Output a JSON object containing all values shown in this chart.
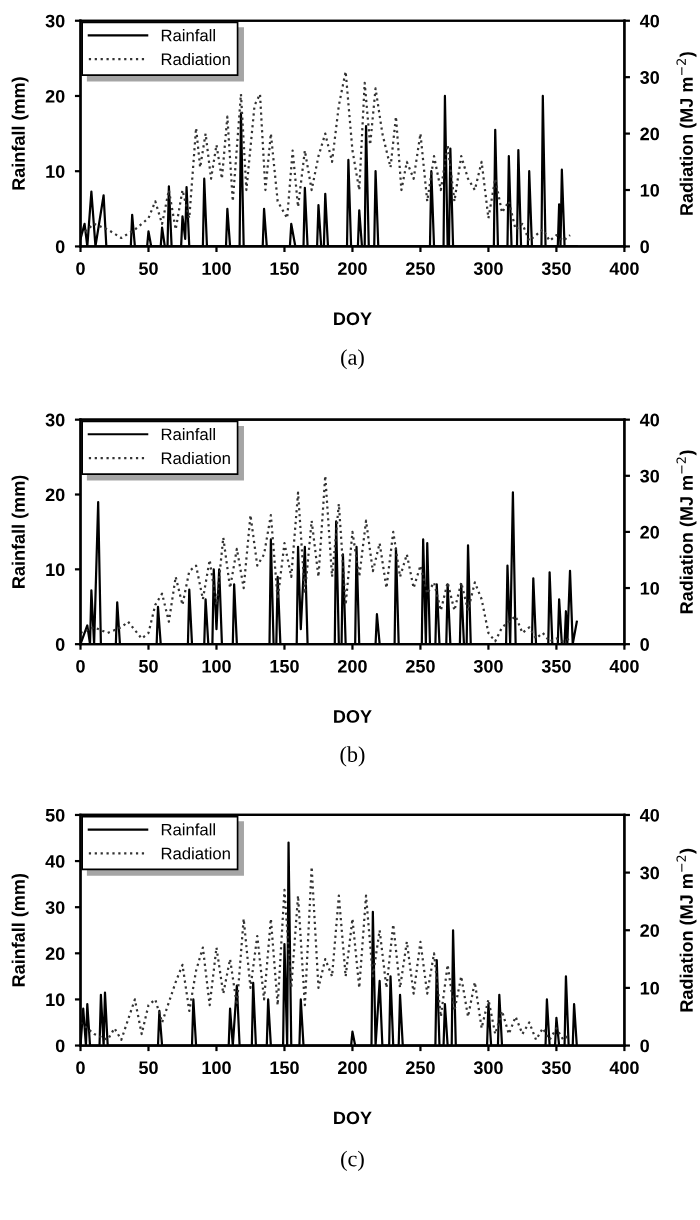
{
  "chart_data": [
    {
      "type": "line",
      "xlabel": "DOY",
      "ylabel": "Rainfall (mm)",
      "y2label": "Radiation (MJ m$^{−2}$)",
      "annotations": [
        "(a)"
      ],
      "xlim": [
        0,
        400
      ],
      "xticks": [
        0,
        50,
        100,
        150,
        200,
        250,
        300,
        350,
        400
      ],
      "ylim": [
        0,
        30
      ],
      "yticks": [
        0,
        10,
        20,
        30
      ],
      "y2lim": [
        0,
        40
      ],
      "y2ticks": [
        0,
        10,
        20,
        30,
        40
      ],
      "legend": "top left",
      "grid": false,
      "series": [
        {
          "name": "Rainfall",
          "color": "#000000",
          "line_style": "solid",
          "x": [
            0,
            3,
            5,
            8,
            11,
            17,
            19,
            37,
            38,
            40,
            49,
            50,
            52,
            59,
            60,
            62,
            64,
            65,
            67,
            74,
            75,
            77,
            78,
            80,
            90,
            91,
            93,
            107,
            108,
            110,
            117,
            118,
            120,
            134,
            135,
            137,
            154,
            155,
            158,
            164,
            165,
            167,
            174,
            175,
            177,
            179,
            180,
            182,
            196,
            197,
            199,
            204,
            205,
            207,
            209,
            210,
            212,
            216,
            217,
            219,
            257,
            258,
            260,
            267,
            268,
            270,
            271,
            272,
            274,
            304,
            305,
            307,
            314,
            315,
            317,
            321,
            322,
            324,
            329,
            330,
            332,
            339,
            340,
            342,
            351,
            352,
            353,
            354,
            356,
            365
          ],
          "values": [
            1,
            3,
            0,
            7.3,
            0,
            6.8,
            0,
            0,
            4.2,
            0,
            0,
            2,
            0,
            0,
            2.5,
            0,
            0,
            8,
            0,
            0,
            4,
            1,
            7.9,
            0,
            0,
            9,
            0,
            0,
            5,
            0,
            0,
            17.7,
            0,
            0,
            5,
            0,
            0,
            3,
            0,
            0,
            7.8,
            0,
            0,
            5.5,
            0,
            0,
            7,
            0,
            0,
            11.5,
            0,
            0,
            4.8,
            0,
            0,
            16,
            0,
            0,
            10,
            0,
            0,
            10,
            0,
            0,
            20,
            0,
            0,
            13,
            0,
            0,
            15.5,
            0,
            0,
            12,
            0,
            0,
            12.8,
            0,
            0,
            10,
            0,
            0,
            20,
            0,
            0,
            5.6,
            0,
            10.2,
            0,
            0
          ]
        },
        {
          "name": "Radiation",
          "color": "#333333",
          "line_style": "dotted",
          "axis": "y2",
          "x": [
            0,
            10,
            20,
            30,
            40,
            50,
            55,
            60,
            65,
            70,
            75,
            80,
            85,
            88,
            92,
            96,
            100,
            104,
            108,
            112,
            118,
            122,
            128,
            132,
            136,
            140,
            145,
            152,
            156,
            160,
            165,
            170,
            175,
            180,
            185,
            190,
            195,
            200,
            205,
            209,
            213,
            217,
            222,
            228,
            232,
            236,
            240,
            245,
            250,
            255,
            260,
            265,
            270,
            275,
            280,
            285,
            290,
            295,
            300,
            305,
            310,
            315,
            320,
            325,
            330,
            335,
            340,
            345,
            350,
            355,
            360
          ],
          "values": [
            2,
            4,
            3,
            1.5,
            3,
            5,
            8,
            4,
            10,
            3,
            10,
            5,
            21,
            14,
            20,
            12,
            18,
            12,
            23,
            8,
            27,
            10,
            25,
            27,
            10,
            20,
            8,
            5,
            17,
            7,
            17,
            10,
            16,
            20,
            15,
            25,
            31,
            17,
            10,
            29,
            18,
            28,
            20,
            14,
            23,
            10,
            15,
            12,
            20,
            8,
            16,
            10,
            18,
            8,
            16,
            12,
            10,
            15,
            5,
            12,
            6,
            8,
            3,
            4,
            1,
            2,
            3,
            1,
            2,
            1,
            2
          ]
        }
      ]
    },
    {
      "type": "line",
      "xlabel": "DOY",
      "ylabel": "Rainfall (mm)",
      "y2label": "Radiation (MJ m$^{−2}$)",
      "annotations": [
        "(b)"
      ],
      "xlim": [
        0,
        400
      ],
      "xticks": [
        0,
        50,
        100,
        150,
        200,
        250,
        300,
        350,
        400
      ],
      "ylim": [
        0,
        30
      ],
      "yticks": [
        0,
        10,
        20,
        30
      ],
      "y2lim": [
        0,
        40
      ],
      "y2ticks": [
        0,
        10,
        20,
        30,
        40
      ],
      "legend": "top left",
      "grid": false,
      "series": [
        {
          "name": "Rainfall",
          "color": "#000000",
          "line_style": "solid",
          "x": [
            0,
            5,
            7,
            8,
            10,
            13,
            15,
            26,
            27,
            29,
            56,
            57,
            59,
            79,
            80,
            82,
            91,
            92,
            94,
            97,
            98,
            100,
            102,
            104,
            112,
            113,
            115,
            139,
            140,
            142,
            144,
            145,
            147,
            159,
            160,
            162,
            165,
            167,
            187,
            188,
            190,
            192,
            193,
            195,
            202,
            203,
            205,
            217,
            218,
            220,
            231,
            232,
            234,
            251,
            252,
            254,
            255,
            257,
            261,
            262,
            264,
            269,
            270,
            272,
            279,
            280,
            282,
            284,
            285,
            287,
            313,
            314,
            316,
            318,
            320,
            332,
            333,
            335,
            344,
            345,
            347,
            351,
            352,
            354,
            356,
            357,
            358,
            360,
            362,
            365
          ],
          "values": [
            0,
            2.5,
            0,
            7.2,
            0,
            19,
            0,
            0,
            5.6,
            0,
            0,
            5,
            0,
            0,
            7.3,
            0,
            0,
            6,
            0,
            0,
            10,
            2,
            10,
            0,
            0,
            8,
            0,
            0,
            14,
            0,
            0,
            9,
            0,
            0,
            13,
            2,
            13,
            0,
            0,
            16.4,
            0,
            0,
            12,
            0,
            0,
            13,
            0,
            0,
            4,
            0,
            0,
            12.8,
            0,
            0,
            14,
            0,
            13.5,
            0,
            0,
            8,
            0,
            0,
            8,
            0,
            0,
            8,
            0,
            0,
            13.2,
            0,
            0,
            10.5,
            0,
            20.3,
            0,
            0,
            8.8,
            0,
            0,
            9.6,
            0,
            0,
            6,
            0,
            0,
            4.4,
            0,
            9.8,
            0,
            3
          ]
        },
        {
          "name": "Radiation",
          "color": "#333333",
          "line_style": "dotted",
          "axis": "y2",
          "x": [
            0,
            10,
            20,
            30,
            35,
            45,
            50,
            55,
            60,
            65,
            70,
            75,
            80,
            85,
            90,
            95,
            100,
            105,
            110,
            115,
            120,
            125,
            130,
            135,
            140,
            145,
            150,
            155,
            160,
            165,
            170,
            175,
            180,
            185,
            190,
            195,
            200,
            205,
            210,
            215,
            220,
            225,
            230,
            235,
            240,
            245,
            250,
            255,
            260,
            265,
            270,
            275,
            280,
            285,
            290,
            295,
            300,
            305,
            310,
            315,
            320,
            325,
            330,
            335,
            340,
            345,
            350,
            355,
            360
          ],
          "values": [
            2,
            3,
            2,
            3,
            4,
            1,
            2,
            7,
            9,
            4,
            12,
            7,
            13,
            14,
            8,
            15,
            7,
            19,
            10,
            17,
            10,
            23,
            14,
            16,
            23,
            8,
            18,
            12,
            27,
            9,
            22,
            12,
            30,
            12,
            25,
            7,
            20,
            12,
            22,
            13,
            18,
            10,
            20,
            12,
            16,
            10,
            14,
            9,
            11,
            6,
            11,
            6,
            11,
            6,
            11,
            8,
            2,
            0.5,
            3,
            4,
            5,
            2,
            3,
            1,
            2,
            0.5,
            1,
            0.5,
            1
          ]
        }
      ]
    },
    {
      "type": "line",
      "xlabel": "DOY",
      "ylabel": "Rainfall (mm)",
      "y2label": "Radiation (MJ m$^{−2}$)",
      "annotations": [
        "(c)"
      ],
      "xlim": [
        0,
        400
      ],
      "xticks": [
        0,
        50,
        100,
        150,
        200,
        250,
        300,
        350,
        400
      ],
      "ylim": [
        0,
        50
      ],
      "yticks": [
        0,
        10,
        20,
        30,
        40,
        50
      ],
      "y2lim": [
        0,
        40
      ],
      "y2ticks": [
        0,
        10,
        20,
        30,
        40
      ],
      "legend": "top left",
      "grid": false,
      "series": [
        {
          "name": "Rainfall",
          "color": "#000000",
          "line_style": "solid",
          "x": [
            0,
            2,
            4,
            5,
            7,
            14,
            15,
            17,
            18,
            20,
            57,
            58,
            60,
            82,
            83,
            85,
            109,
            110,
            112,
            115,
            117,
            126,
            127,
            129,
            137,
            138,
            140,
            149,
            150,
            152,
            153,
            155,
            161,
            162,
            164,
            199,
            200,
            202,
            214,
            215,
            217,
            220,
            222,
            227,
            228,
            230,
            234,
            235,
            237,
            261,
            262,
            264,
            267,
            268,
            270,
            273,
            274,
            276,
            299,
            300,
            302,
            307,
            308,
            310,
            342,
            343,
            345,
            349,
            350,
            352,
            356,
            357,
            359,
            362,
            363,
            365
          ],
          "values": [
            0,
            8,
            0,
            9,
            0,
            0,
            11,
            0,
            11.5,
            0,
            0,
            7.5,
            0,
            0,
            10,
            0,
            0,
            8,
            0,
            13,
            0,
            0,
            13.6,
            0,
            0,
            10,
            0,
            0,
            22,
            0,
            44,
            0,
            0,
            10,
            0,
            0,
            3,
            0,
            0,
            29,
            0,
            14,
            0,
            0,
            15,
            0,
            0,
            11,
            0,
            0,
            18.5,
            0,
            0,
            9,
            0,
            0,
            25,
            0,
            0,
            9,
            0,
            0,
            11,
            0,
            0,
            10,
            0,
            0,
            6,
            0,
            0,
            15,
            0,
            0,
            9,
            0
          ]
        },
        {
          "name": "Radiation",
          "color": "#333333",
          "line_style": "dotted",
          "axis": "y2",
          "x": [
            0,
            10,
            20,
            25,
            30,
            40,
            45,
            50,
            55,
            60,
            70,
            75,
            80,
            85,
            90,
            95,
            100,
            105,
            110,
            115,
            120,
            125,
            130,
            135,
            140,
            145,
            150,
            155,
            160,
            165,
            170,
            175,
            180,
            185,
            190,
            195,
            200,
            205,
            210,
            215,
            220,
            225,
            230,
            235,
            240,
            245,
            250,
            255,
            260,
            265,
            270,
            275,
            280,
            285,
            290,
            295,
            300,
            305,
            310,
            315,
            320,
            325,
            330,
            335,
            340,
            345,
            350,
            355,
            360
          ],
          "values": [
            4,
            2,
            1,
            3,
            1,
            8,
            2,
            7,
            8,
            4,
            11,
            14,
            6,
            13,
            17,
            7,
            17,
            9,
            15,
            7,
            22,
            10,
            19,
            8,
            22,
            7,
            27,
            10,
            26,
            7,
            31,
            10,
            15,
            12,
            26,
            12,
            22,
            10,
            26,
            12,
            20,
            10,
            21,
            10,
            18,
            9,
            18,
            9,
            16,
            5,
            14,
            6,
            12,
            5,
            11,
            3,
            8,
            2,
            6,
            2,
            5,
            2,
            4,
            1,
            3,
            1,
            3,
            1,
            2
          ]
        }
      ]
    }
  ]
}
